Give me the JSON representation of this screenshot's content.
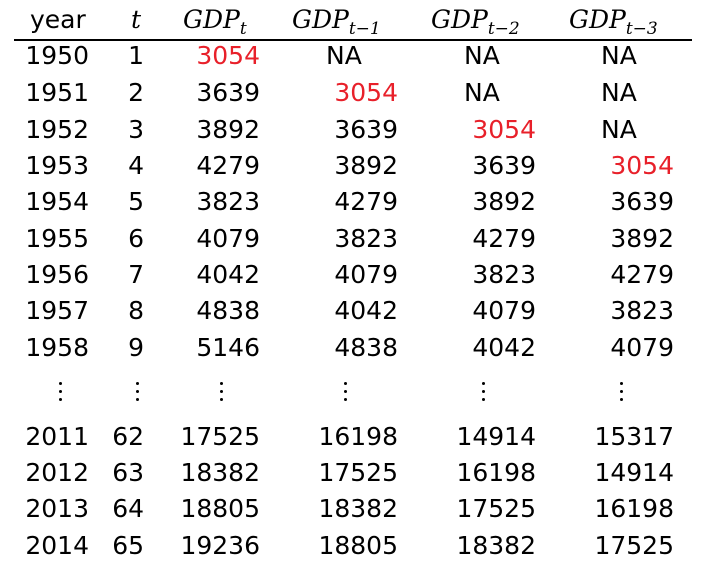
{
  "colors": {
    "highlight": "#e8202a",
    "text": "#000000"
  },
  "header": {
    "year": "year",
    "t": "t",
    "gdp_base": "GDP",
    "sub_t": "t",
    "sub_t1": "t−1",
    "sub_t2": "t−2",
    "sub_t3": "t−3"
  },
  "rows": [
    [
      "1950",
      "1",
      "3054",
      "NA",
      "NA",
      "NA"
    ],
    [
      "1951",
      "2",
      "3639",
      "3054",
      "NA",
      "NA"
    ],
    [
      "1952",
      "3",
      "3892",
      "3639",
      "3054",
      "NA"
    ],
    [
      "1953",
      "4",
      "4279",
      "3892",
      "3639",
      "3054"
    ],
    [
      "1954",
      "5",
      "3823",
      "4279",
      "3892",
      "3639"
    ],
    [
      "1955",
      "6",
      "4079",
      "3823",
      "4279",
      "3892"
    ],
    [
      "1956",
      "7",
      "4042",
      "4079",
      "3823",
      "4279"
    ],
    [
      "1957",
      "8",
      "4838",
      "4042",
      "4079",
      "3823"
    ],
    [
      "1958",
      "9",
      "5146",
      "4838",
      "4042",
      "4079"
    ],
    [
      "2011",
      "62",
      "17525",
      "16198",
      "14914",
      "15317"
    ],
    [
      "2012",
      "63",
      "18382",
      "17525",
      "16198",
      "14914"
    ],
    [
      "2013",
      "64",
      "18805",
      "18382",
      "17525",
      "16198"
    ],
    [
      "2014",
      "65",
      "19236",
      "18805",
      "18382",
      "17525"
    ]
  ],
  "highlighted_cells": [
    [
      0,
      2
    ],
    [
      1,
      3
    ],
    [
      2,
      4
    ],
    [
      3,
      5
    ]
  ]
}
